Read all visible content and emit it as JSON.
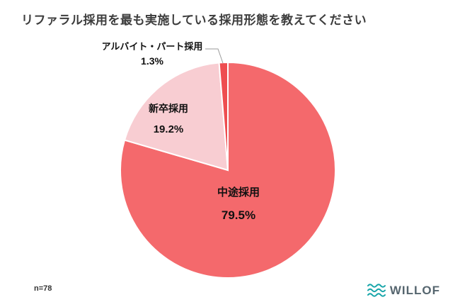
{
  "title": "リファラル採用を最も実施している採用形態を教えてください",
  "sample_size": "n=78",
  "logo": {
    "brand": "WILLOF",
    "wave_color": "#17a5a9",
    "text_color": "#56666f"
  },
  "chart_data": {
    "type": "pie",
    "title": "リファラル採用を最も実施している採用形態を教えてください",
    "categories": [
      "中途採用",
      "新卒採用",
      "アルバイト・パート採用"
    ],
    "values": [
      79.5,
      19.2,
      1.3
    ],
    "labels": [
      "79.5%",
      "19.2%",
      "1.3%"
    ],
    "colors": [
      "#f4696c",
      "#f8cdd2",
      "#ee4d50"
    ],
    "start_angle_deg": -90,
    "direction": "clockwise",
    "legend": "none",
    "annotation_note": "1.3% slice labeled outside with leader line; other labels inside slices",
    "sample_size_label": "n=78"
  }
}
